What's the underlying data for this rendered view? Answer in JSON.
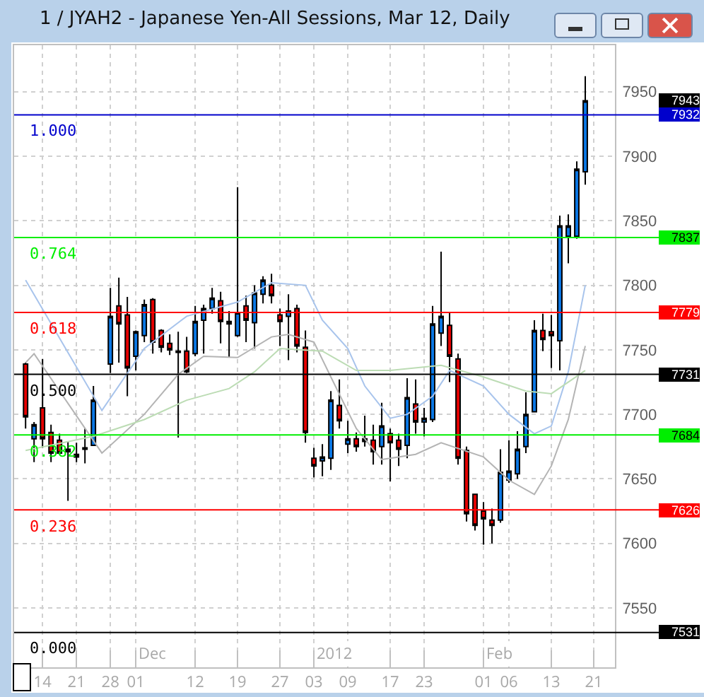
{
  "chart_data": {
    "type": "candlestick",
    "title": "1 / JYAH2 - Japanese Yen-All Sessions, Mar 12, Daily",
    "categories": [
      null,
      null,
      "14",
      null,
      null,
      null,
      "21",
      null,
      null,
      null,
      "28",
      null,
      null,
      "01",
      null,
      null,
      null,
      null,
      null,
      null,
      "12",
      null,
      null,
      null,
      null,
      "19",
      null,
      null,
      null,
      null,
      "27",
      null,
      null,
      null,
      "03",
      null,
      null,
      null,
      "09",
      null,
      null,
      null,
      null,
      "17",
      null,
      null,
      null,
      "23",
      null,
      null,
      null,
      null,
      null,
      null,
      "01",
      null,
      null,
      "06",
      null,
      null,
      null,
      null,
      "13",
      null,
      null,
      null,
      null,
      "21"
    ],
    "ohlc": [
      [
        7739,
        7740,
        7689,
        7698
      ],
      [
        7681,
        7694,
        7663,
        7692
      ],
      [
        7705,
        7743,
        7674,
        7681
      ],
      [
        7686,
        7692,
        7663,
        7670
      ],
      [
        7680,
        7685,
        7669,
        7670
      ],
      [
        7673,
        7679,
        7633,
        7671
      ],
      [
        7669,
        7678,
        7663,
        7667
      ],
      [
        7673,
        7689,
        7662,
        7674
      ],
      [
        7676,
        7722,
        7676,
        7711
      ],
      null,
      [
        7739,
        7798,
        7732,
        7776
      ],
      [
        7784,
        7806,
        7740,
        7770
      ],
      [
        7777,
        7791,
        7714,
        7736
      ],
      [
        7745,
        7765,
        7734,
        7764
      ],
      [
        7761,
        7789,
        7756,
        7785
      ],
      [
        7789,
        7790,
        7747,
        7756
      ],
      [
        7765,
        7766,
        7748,
        7752
      ],
      [
        7755,
        7762,
        7746,
        7750
      ],
      [
        7748,
        7764,
        7682,
        7749
      ],
      [
        7749,
        7760,
        7732,
        7733
      ],
      [
        7747,
        7784,
        7745,
        7772
      ],
      [
        7773,
        7785,
        7747,
        7782
      ],
      [
        7782,
        7798,
        7778,
        7790
      ],
      [
        7788,
        7795,
        7755,
        7772
      ],
      [
        7772,
        7780,
        7744,
        7770
      ],
      [
        7761,
        7876,
        7760,
        7779
      ],
      [
        7784,
        7792,
        7756,
        7773
      ],
      [
        7771,
        7800,
        7751,
        7794
      ],
      [
        7793,
        7807,
        7786,
        7804
      ],
      [
        7800,
        7809,
        7786,
        7792
      ],
      [
        7777,
        7782,
        7753,
        7772
      ],
      [
        7776,
        7793,
        7742,
        7780
      ],
      [
        7782,
        7785,
        7748,
        7753
      ],
      [
        7752,
        7765,
        7678,
        7686
      ],
      [
        7666,
        7674,
        7651,
        7660
      ],
      [
        7664,
        7677,
        7652,
        7667
      ],
      [
        7666,
        7718,
        7657,
        7711
      ],
      [
        7707,
        7727,
        7689,
        7695
      ],
      [
        7677,
        7695,
        7670,
        7681
      ],
      [
        7681,
        7686,
        7671,
        7675
      ],
      [
        7679,
        7699,
        7675,
        7681
      ],
      [
        7680,
        7692,
        7661,
        7671
      ],
      [
        7675,
        7709,
        7661,
        7691
      ],
      [
        7685,
        7689,
        7648,
        7678
      ],
      [
        7680,
        7685,
        7660,
        7673
      ],
      [
        7676,
        7728,
        7666,
        7713
      ],
      [
        7708,
        7727,
        7685,
        7694
      ],
      [
        7694,
        7705,
        7683,
        7697
      ],
      [
        7696,
        7784,
        7694,
        7770
      ],
      [
        7763,
        7826,
        7753,
        7776
      ],
      [
        7769,
        7779,
        7725,
        7745
      ],
      [
        7743,
        7747,
        7661,
        7666
      ],
      [
        7672,
        7675,
        7617,
        7623
      ],
      [
        7638,
        7638,
        7610,
        7614
      ],
      [
        7625,
        7632,
        7599,
        7619
      ],
      [
        7618,
        7627,
        7600,
        7614
      ],
      [
        7618,
        7673,
        7616,
        7655
      ],
      [
        7649,
        7680,
        7647,
        7656
      ],
      [
        7654,
        7687,
        7650,
        7673
      ],
      [
        7675,
        7717,
        7670,
        7700
      ],
      [
        7702,
        7773,
        7702,
        7765
      ],
      [
        7765,
        7778,
        7749,
        7758
      ],
      [
        7764,
        7777,
        7736,
        7761
      ],
      [
        7757,
        7854,
        7734,
        7846
      ],
      [
        7838,
        7855,
        7817,
        7846
      ],
      [
        7838,
        7896,
        7836,
        7890
      ],
      [
        7888,
        7962,
        7878,
        7943
      ],
      null
    ],
    "series": [
      {
        "type": "line",
        "color": "#a8c4ec",
        "values": [
          7804,
          null,
          null,
          null,
          null,
          null,
          null,
          null,
          null,
          7703,
          null,
          null,
          null,
          null,
          7751,
          null,
          null,
          null,
          null,
          7776,
          null,
          null,
          null,
          null,
          null,
          7787,
          null,
          null,
          null,
          7802,
          null,
          null,
          null,
          7800,
          null,
          7773,
          null,
          null,
          7751,
          null,
          7722,
          null,
          null,
          7697,
          null,
          7700,
          null,
          null,
          7714,
          null,
          7734,
          null,
          null,
          null,
          7722,
          null,
          null,
          7700,
          null,
          null,
          7685,
          null,
          7691,
          null,
          7733,
          null,
          7800,
          null
        ]
      },
      {
        "type": "line",
        "color": "#b4b4b4",
        "values": [
          7740,
          7747,
          null,
          null,
          null,
          null,
          null,
          null,
          null,
          7670,
          null,
          null,
          null,
          null,
          7700,
          null,
          null,
          null,
          7731,
          null,
          null,
          7745,
          null,
          null,
          null,
          7744,
          null,
          null,
          null,
          7760,
          null,
          7762,
          null,
          null,
          7756,
          null,
          7729,
          null,
          null,
          7689,
          null,
          null,
          7665,
          null,
          null,
          null,
          7669,
          null,
          null,
          7678,
          null,
          null,
          null,
          null,
          7667,
          null,
          null,
          7649,
          null,
          null,
          7638,
          null,
          7660,
          null,
          7696,
          null,
          7753,
          null
        ]
      },
      {
        "type": "line",
        "color": "#bcdcb4",
        "values": [
          7672,
          null,
          null,
          null,
          null,
          null,
          null,
          null,
          7683,
          null,
          null,
          null,
          null,
          null,
          7696,
          null,
          null,
          null,
          null,
          7711,
          null,
          null,
          null,
          null,
          7720,
          null,
          null,
          7733,
          null,
          null,
          7751,
          null,
          null,
          null,
          null,
          7749,
          null,
          null,
          null,
          7734,
          null,
          null,
          null,
          7734,
          null,
          null,
          null,
          null,
          null,
          7738,
          null,
          null,
          null,
          null,
          7729,
          null,
          null,
          null,
          null,
          7718,
          null,
          null,
          7716,
          null,
          null,
          null,
          7734,
          null
        ]
      }
    ],
    "ylim": [
      7504,
      7986
    ],
    "yticks": [
      7550,
      7600,
      7650,
      7700,
      7750,
      7800,
      7850,
      7900,
      7950
    ],
    "grid": true,
    "ref_lines": [
      {
        "axis": "y",
        "value": 7932,
        "label": "7932",
        "color": "#0000cc"
      },
      {
        "axis": "y",
        "value": 7837,
        "label": "7837",
        "color": "#00ee00"
      },
      {
        "axis": "y",
        "value": 7779,
        "label": "7779",
        "color": "#ff0000"
      },
      {
        "axis": "y",
        "value": 7731,
        "label": "7731",
        "color": "#000000"
      },
      {
        "axis": "y",
        "value": 7684,
        "label": "7684",
        "color": "#00ee00"
      },
      {
        "axis": "y",
        "value": 7626,
        "label": "7626",
        "color": "#ff0000"
      },
      {
        "axis": "y",
        "value": 7531,
        "label": "7531",
        "color": "#000000"
      }
    ],
    "annotations": [
      "Dec",
      "2012",
      "Feb",
      {
        "text": "1.000",
        "y": 7932
      },
      {
        "text": "0.764",
        "y": 7837
      },
      {
        "text": "0.618",
        "y": 7779
      },
      {
        "text": "0.500",
        "y": 7731
      },
      {
        "text": "0.382",
        "y": 7684
      },
      {
        "text": "0.236",
        "y": 7626
      },
      {
        "text": "0.000",
        "y": 7531
      },
      "7943"
    ]
  }
}
